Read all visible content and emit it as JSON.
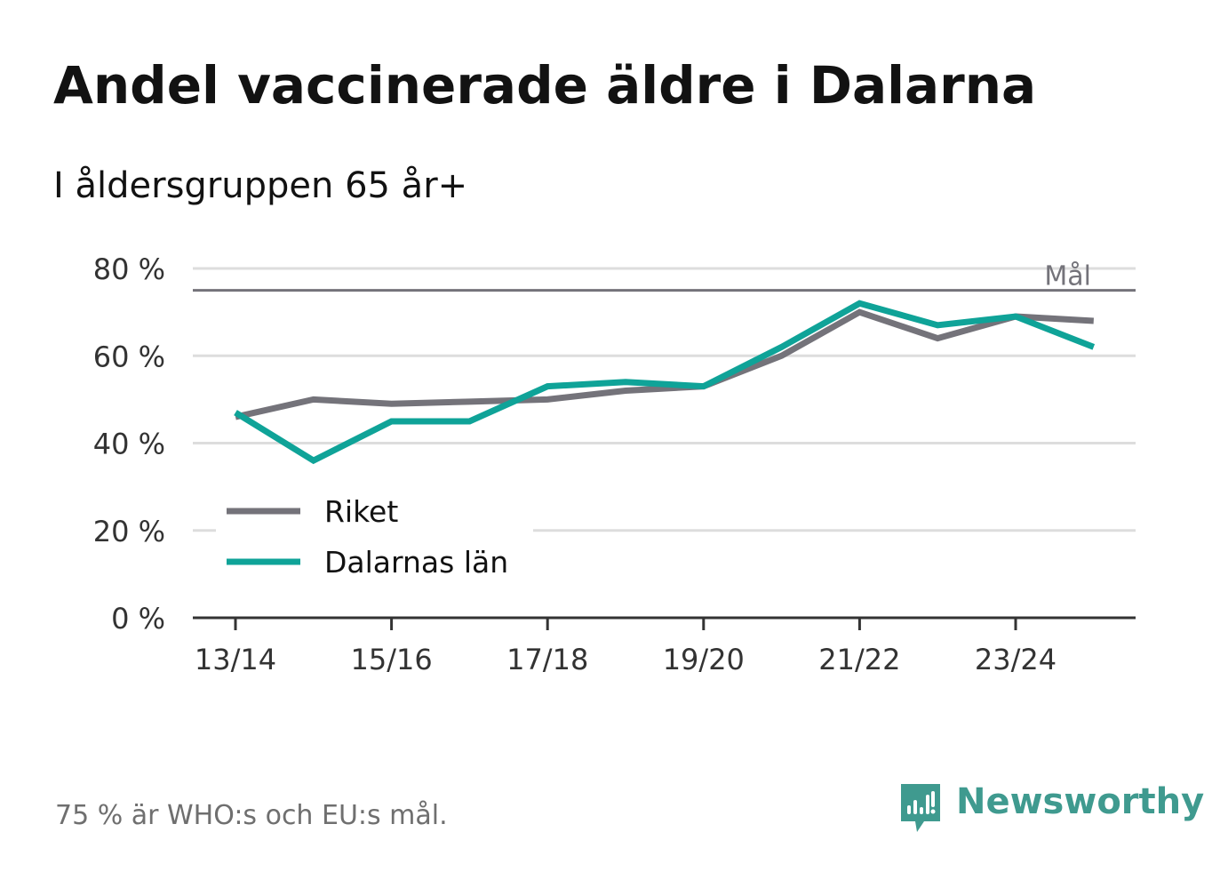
{
  "title": "Andel vaccinerade äldre i Dalarna",
  "subtitle": "I åldersgruppen 65 år+",
  "footnote": "75 % är WHO:s och EU:s mål.",
  "brand": "Newsworthy",
  "colors": {
    "riket": "#74737a",
    "dalarna": "#0fa398",
    "goal": "#74737a",
    "grid": "#dddddd",
    "axis": "#333333",
    "brand": "#3f9a8f"
  },
  "chart_data": {
    "type": "line",
    "x": [
      "13/14",
      "14/15",
      "15/16",
      "16/17",
      "17/18",
      "18/19",
      "19/20",
      "20/21",
      "21/22",
      "22/23",
      "23/24",
      "24/25"
    ],
    "tick_labels": [
      "13/14",
      "15/16",
      "17/18",
      "19/20",
      "21/22",
      "23/24"
    ],
    "ylim": [
      0,
      80
    ],
    "yticks": [
      0,
      20,
      40,
      60,
      80
    ],
    "ytick_labels": [
      "0 %",
      "20 %",
      "40 %",
      "60 %",
      "80 %"
    ],
    "grid": true,
    "legend_position": "bottom-left",
    "goal": {
      "value": 75,
      "label": "Mål"
    },
    "series": [
      {
        "name": "Riket",
        "color": "#74737a",
        "values": [
          46,
          50,
          49,
          49.5,
          50,
          52,
          53,
          60,
          70,
          64,
          69,
          68
        ]
      },
      {
        "name": "Dalarnas län",
        "color": "#0fa398",
        "values": [
          47,
          36,
          45,
          45,
          53,
          54,
          53,
          62,
          72,
          67,
          69,
          62
        ]
      }
    ]
  }
}
